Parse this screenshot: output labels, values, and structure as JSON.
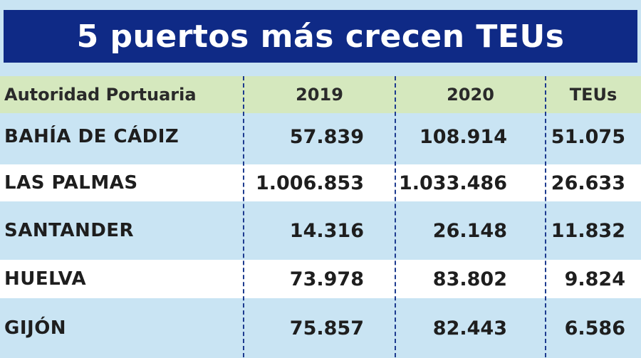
{
  "title": "5 puertos más crecen TEUs",
  "headers": [
    "Autoridad Portuaria",
    "2019",
    "2020",
    "TEUs"
  ],
  "rows": [
    {
      "port": "BAHÍA DE CÁDIZ",
      "y2019": "57.839",
      "y2020": "108.914",
      "teus": "51.075"
    },
    {
      "port": "LAS PALMAS",
      "y2019": "1.006.853",
      "y2020": "1.033.486",
      "teus": "26.633"
    },
    {
      "port": "SANTANDER",
      "y2019": "14.316",
      "y2020": "26.148",
      "teus": "11.832"
    },
    {
      "port": "HUELVA",
      "y2019": "73.978",
      "y2020": "83.802",
      "teus": "9.824"
    },
    {
      "port": "GIJÓN",
      "y2019": "75.857",
      "y2020": "82.443",
      "teus": "6.586"
    }
  ],
  "colors": {
    "title_background": "#0f2a86",
    "header_background": "#d5e8be",
    "row_light_blue": "#c9e4f3",
    "row_white": "#ffffff",
    "divider": "#1d3b8f"
  }
}
